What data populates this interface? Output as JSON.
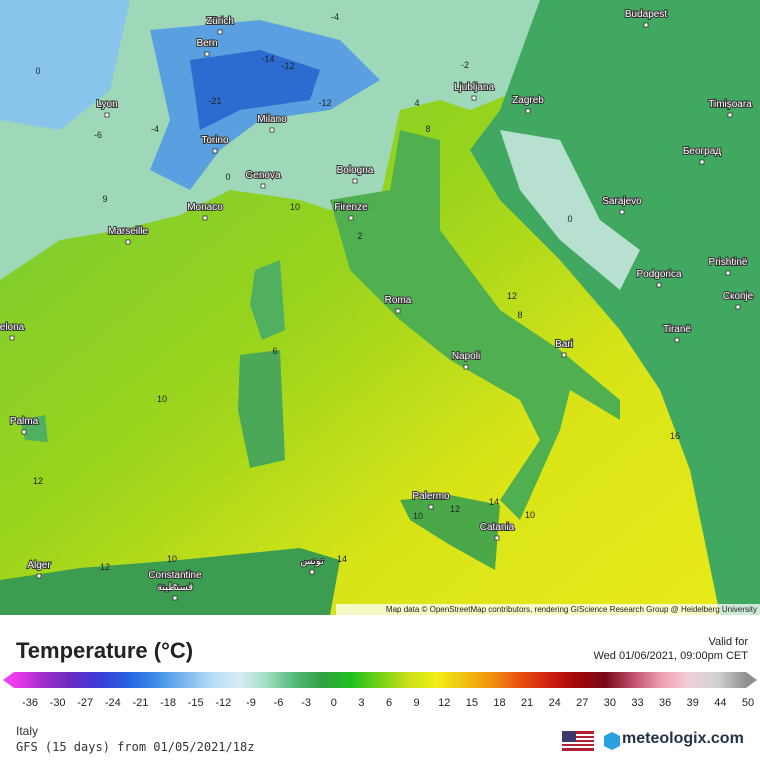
{
  "map": {
    "cities": [
      "Zürich",
      "Bern",
      "Lyon",
      "Milano",
      "Torino",
      "Genova",
      "Bologna",
      "Monaco",
      "Marseille",
      "Firenze",
      "Roma",
      "Napoli",
      "Bari",
      "Palermo",
      "Catania",
      "Palma",
      "Alger",
      "Constantine",
      "قسنطينة",
      "تونس",
      "Ljubljana",
      "Zagreb",
      "Budapest",
      "Timișoara",
      "Београд",
      "Sarajevo",
      "Podgorica",
      "Prishtinë",
      "Скопје",
      "Tiranë",
      "elona"
    ],
    "contour_labels": [
      -4,
      -2,
      0,
      -14,
      -12,
      -12,
      -21,
      -6,
      -4,
      4,
      8,
      0,
      9,
      10,
      2,
      0,
      12,
      8,
      6,
      10,
      12,
      16,
      14,
      12,
      10,
      10,
      10,
      12,
      14
    ],
    "attribution": "Map data © OpenStreetMap contributors, rendering GIScience Research Group @ Heidelberg University"
  },
  "legend": {
    "title": "Temperature (°C)",
    "valid_label": "Valid for",
    "valid_time": "Wed 01/06/2021, 09:00pm CET",
    "ticks": [
      -36,
      -30,
      -27,
      -24,
      -21,
      -18,
      -15,
      -12,
      -9,
      -6,
      -3,
      0,
      3,
      6,
      9,
      12,
      15,
      18,
      21,
      24,
      27,
      30,
      33,
      36,
      39,
      44,
      50
    ]
  },
  "footer": {
    "region": "Italy",
    "model": "GFS (15 days) from 01/05/2021/18z",
    "brand": "meteologix.com"
  }
}
